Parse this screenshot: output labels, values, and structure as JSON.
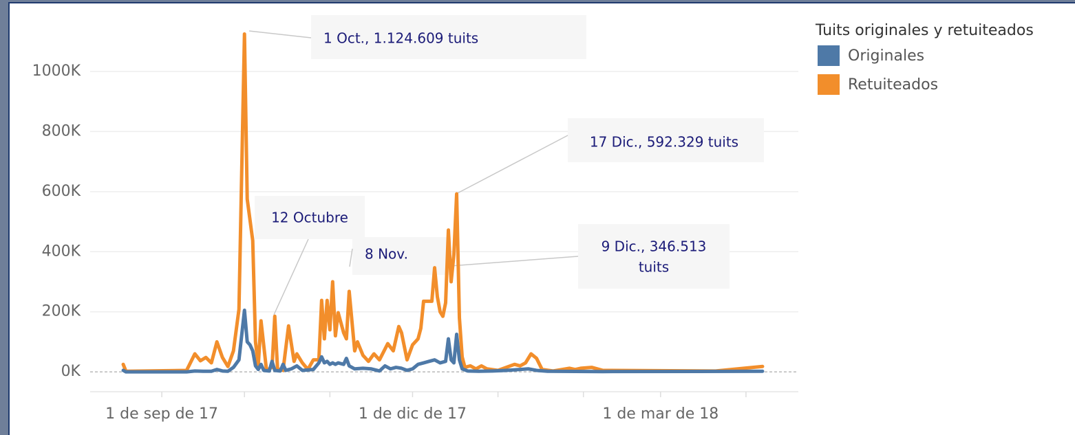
{
  "chart_data": {
    "type": "line",
    "xlim": [
      "2017-08-06",
      "2018-04-20"
    ],
    "xticks": [
      {
        "value": "2017-09-01",
        "label": "1 de sep de 17"
      },
      {
        "value": "2017-12-01",
        "label": "1 de dic de 17"
      },
      {
        "value": "2018-03-01",
        "label": "1 de mar de 18"
      }
    ],
    "xminorticks": [
      "2017-09-01",
      "2017-10-01",
      "2017-11-01",
      "2017-12-01",
      "2018-01-01",
      "2018-02-01",
      "2018-03-01",
      "2018-04-01"
    ],
    "ylim": [
      -66,
      1192
    ],
    "yticks": [
      {
        "value": 0,
        "label": "0K"
      },
      {
        "value": 200,
        "label": "200K"
      },
      {
        "value": 400,
        "label": "400K"
      },
      {
        "value": 600,
        "label": "600K"
      },
      {
        "value": 800,
        "label": "800K"
      },
      {
        "value": 1000,
        "label": "1000K"
      }
    ],
    "grid": true,
    "legend": {
      "title": "Tuits originales y retuiteados",
      "position": "right"
    },
    "series": [
      {
        "name": "Originales",
        "color": "#4e79a7",
        "x": [
          "2017-08-18",
          "2017-08-19",
          "2017-09-10",
          "2017-09-13",
          "2017-09-16",
          "2017-09-19",
          "2017-09-21",
          "2017-09-23",
          "2017-09-25",
          "2017-09-27",
          "2017-09-29",
          "2017-10-01",
          "2017-10-02",
          "2017-10-03",
          "2017-10-04",
          "2017-10-05",
          "2017-10-06",
          "2017-10-07",
          "2017-10-08",
          "2017-10-10",
          "2017-10-11",
          "2017-10-12",
          "2017-10-14",
          "2017-10-15",
          "2017-10-16",
          "2017-10-18",
          "2017-10-20",
          "2017-10-22",
          "2017-10-26",
          "2017-10-28",
          "2017-10-29",
          "2017-10-30",
          "2017-10-31",
          "2017-11-01",
          "2017-11-02",
          "2017-11-03",
          "2017-11-04",
          "2017-11-06",
          "2017-11-07",
          "2017-11-08",
          "2017-11-10",
          "2017-11-13",
          "2017-11-16",
          "2017-11-19",
          "2017-11-21",
          "2017-11-23",
          "2017-11-25",
          "2017-11-27",
          "2017-11-29",
          "2017-12-01",
          "2017-12-03",
          "2017-12-05",
          "2017-12-07",
          "2017-12-09",
          "2017-12-11",
          "2017-12-13",
          "2017-12-14",
          "2017-12-15",
          "2017-12-16",
          "2017-12-17",
          "2017-12-18",
          "2017-12-19",
          "2017-12-21",
          "2017-12-25",
          "2017-12-30",
          "2018-01-04",
          "2018-01-09",
          "2018-01-12",
          "2018-01-15",
          "2018-01-19",
          "2018-02-08",
          "2018-04-07"
        ],
        "values": [
          5,
          0,
          0,
          3,
          2,
          2,
          8,
          3,
          2,
          15,
          40,
          205,
          100,
          90,
          70,
          20,
          8,
          25,
          5,
          3,
          35,
          5,
          3,
          25,
          5,
          10,
          20,
          5,
          8,
          30,
          50,
          30,
          35,
          25,
          30,
          25,
          30,
          25,
          45,
          20,
          10,
          12,
          10,
          3,
          20,
          10,
          15,
          12,
          5,
          10,
          25,
          30,
          35,
          40,
          30,
          35,
          110,
          40,
          30,
          125,
          40,
          10,
          3,
          2,
          3,
          5,
          8,
          10,
          5,
          2,
          1,
          2
        ]
      },
      {
        "name": "Retuiteados",
        "color": "#f28e2b",
        "x": [
          "2017-08-18",
          "2017-08-19",
          "2017-09-10",
          "2017-09-13",
          "2017-09-15",
          "2017-09-17",
          "2017-09-19",
          "2017-09-21",
          "2017-09-23",
          "2017-09-25",
          "2017-09-27",
          "2017-09-29",
          "2017-10-01",
          "2017-10-02",
          "2017-10-04",
          "2017-10-05",
          "2017-10-06",
          "2017-10-07",
          "2017-10-09",
          "2017-10-11",
          "2017-10-12",
          "2017-10-13",
          "2017-10-15",
          "2017-10-17",
          "2017-10-19",
          "2017-10-20",
          "2017-10-22",
          "2017-10-24",
          "2017-10-26",
          "2017-10-28",
          "2017-10-29",
          "2017-10-30",
          "2017-10-31",
          "2017-11-01",
          "2017-11-02",
          "2017-11-03",
          "2017-11-04",
          "2017-11-06",
          "2017-11-07",
          "2017-11-08",
          "2017-11-10",
          "2017-11-11",
          "2017-11-13",
          "2017-11-15",
          "2017-11-17",
          "2017-11-19",
          "2017-11-22",
          "2017-11-24",
          "2017-11-26",
          "2017-11-27",
          "2017-11-29",
          "2017-12-01",
          "2017-12-03",
          "2017-12-04",
          "2017-12-05",
          "2017-12-07",
          "2017-12-08",
          "2017-12-09",
          "2017-12-10",
          "2017-12-11",
          "2017-12-12",
          "2017-12-13",
          "2017-12-14",
          "2017-12-15",
          "2017-12-16",
          "2017-12-17",
          "2017-12-18",
          "2017-12-19",
          "2017-12-20",
          "2017-12-22",
          "2017-12-24",
          "2017-12-26",
          "2017-12-28",
          "2018-01-01",
          "2018-01-04",
          "2018-01-07",
          "2018-01-09",
          "2018-01-11",
          "2018-01-13",
          "2018-01-15",
          "2018-01-17",
          "2018-01-21",
          "2018-01-27",
          "2018-01-29",
          "2018-01-31",
          "2018-02-04",
          "2018-02-08",
          "2018-03-21",
          "2018-04-07"
        ],
        "values": [
          25,
          2,
          5,
          60,
          37,
          48,
          30,
          100,
          48,
          18,
          70,
          208,
          1124.609,
          575,
          437,
          100,
          20,
          170,
          5,
          15,
          185,
          10,
          5,
          153,
          35,
          60,
          30,
          8,
          40,
          40,
          238,
          110,
          238,
          140,
          300,
          120,
          197,
          130,
          110,
          268,
          70,
          100,
          55,
          35,
          60,
          40,
          94,
          70,
          151,
          130,
          40,
          90,
          110,
          145,
          235,
          235,
          235,
          346.513,
          250,
          200,
          185,
          230,
          472,
          300,
          390,
          592.329,
          180,
          50,
          15,
          20,
          10,
          20,
          10,
          5,
          15,
          25,
          20,
          30,
          60,
          45,
          8,
          3,
          12,
          8,
          12,
          15,
          5,
          3,
          18
        ]
      }
    ],
    "annotations": [
      {
        "lines": [
          "1 Oct., 1.124.609 tuits"
        ]
      },
      {
        "lines": [
          "17 Dic., 592.329 tuits"
        ]
      },
      {
        "lines": [
          "12 Octubre"
        ]
      },
      {
        "lines": [
          "8 Nov."
        ]
      },
      {
        "lines": [
          "9 Dic., 346.513",
          "tuits"
        ]
      }
    ]
  }
}
